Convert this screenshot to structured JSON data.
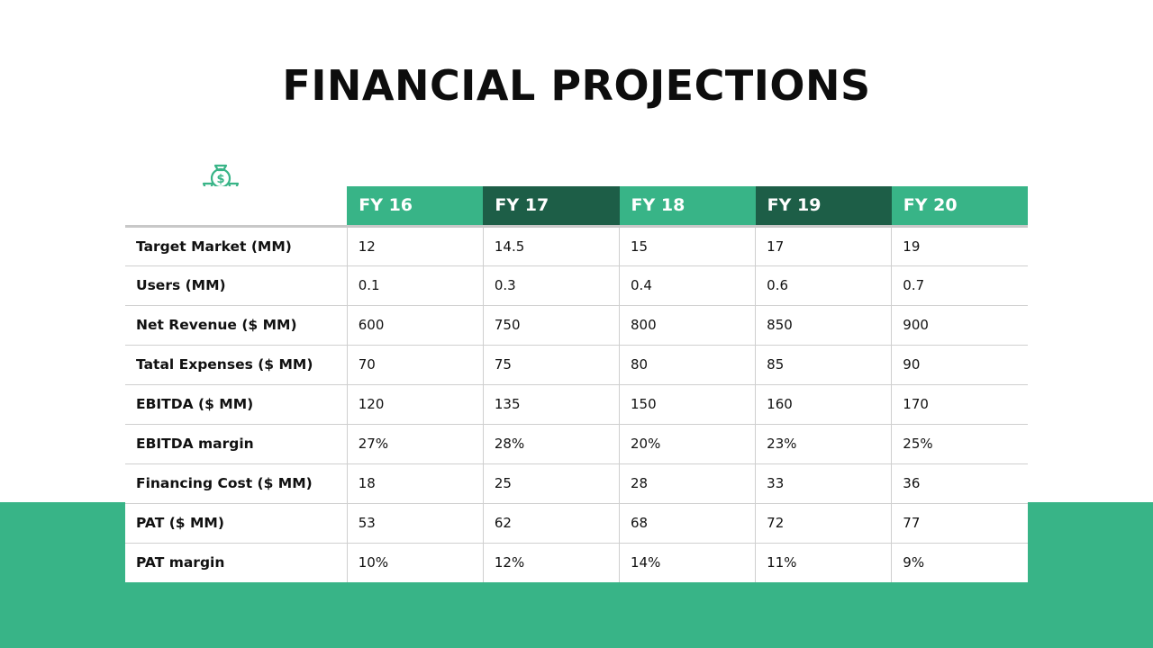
{
  "title": "FINANCIAL PROJECTIONS",
  "icon": "money-bags-icon",
  "colors": {
    "accent": "#38b487",
    "accent_dark": "#1d5e47",
    "title": "#0d0d0d"
  },
  "table": {
    "columns": [
      "FY 16",
      "FY 17",
      "FY 18",
      "FY 19",
      "FY 20"
    ],
    "rows": [
      {
        "label": "Target Market (MM)",
        "values": [
          "12",
          "14.5",
          "15",
          "17",
          "19"
        ]
      },
      {
        "label": "Users (MM)",
        "values": [
          "0.1",
          "0.3",
          "0.4",
          "0.6",
          "0.7"
        ]
      },
      {
        "label": "Net Revenue ($ MM)",
        "values": [
          "600",
          "750",
          "800",
          "850",
          "900"
        ]
      },
      {
        "label": "Tatal Expenses ($ MM)",
        "values": [
          "70",
          "75",
          "80",
          "85",
          "90"
        ]
      },
      {
        "label": "EBITDA ($ MM)",
        "values": [
          "120",
          "135",
          "150",
          "160",
          "170"
        ]
      },
      {
        "label": "EBITDA margin",
        "values": [
          "27%",
          "28%",
          "20%",
          "23%",
          "25%"
        ]
      },
      {
        "label": "Financing Cost ($ MM)",
        "values": [
          "18",
          "25",
          "28",
          "33",
          "36"
        ]
      },
      {
        "label": "PAT ($ MM)",
        "values": [
          "53",
          "62",
          "68",
          "72",
          "77"
        ]
      },
      {
        "label": "PAT margin",
        "values": [
          "10%",
          "12%",
          "14%",
          "11%",
          "9%"
        ]
      }
    ]
  }
}
